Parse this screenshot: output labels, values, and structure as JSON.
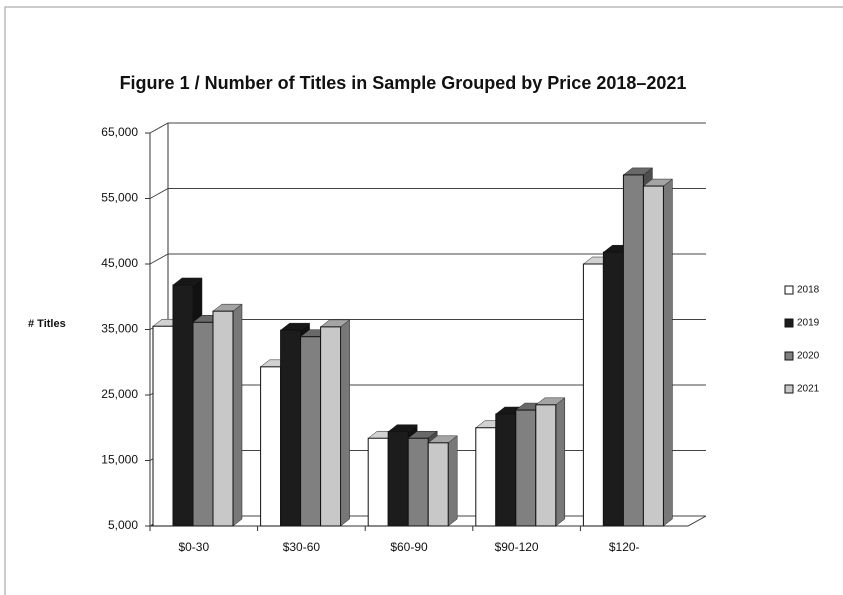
{
  "chart_data": {
    "type": "bar3d",
    "title": "Figure 1  /  Number of Titles in Sample Grouped by Price 2018–2021",
    "y_label": "# Titles",
    "categories": [
      "$0-30",
      "$30-60",
      "$60-90",
      "$90-120",
      "$120-"
    ],
    "series": [
      {
        "name": "2018",
        "color": "#ffffff",
        "values": [
          35500,
          29300,
          18400,
          20000,
          45000
        ]
      },
      {
        "name": "2019",
        "color": "#1c1c1c",
        "values": [
          41800,
          34900,
          19400,
          22100,
          46800
        ]
      },
      {
        "name": "2020",
        "color": "#808080",
        "values": [
          36100,
          33900,
          18400,
          22700,
          58600
        ]
      },
      {
        "name": "2021",
        "color": "#c8c8c8",
        "values": [
          37800,
          35400,
          17700,
          23500,
          56900
        ]
      }
    ],
    "ylim": [
      5000,
      65000
    ],
    "yticks": [
      {
        "value": 5000,
        "label": "5,000"
      },
      {
        "value": 15000,
        "label": "15,000"
      },
      {
        "value": 25000,
        "label": "25,000"
      },
      {
        "value": 35000,
        "label": "35,000"
      },
      {
        "value": 45000,
        "label": "45,000"
      },
      {
        "value": 55000,
        "label": "55,000"
      },
      {
        "value": 65000,
        "label": "65,000"
      }
    ],
    "grid": true,
    "legend": "right"
  }
}
